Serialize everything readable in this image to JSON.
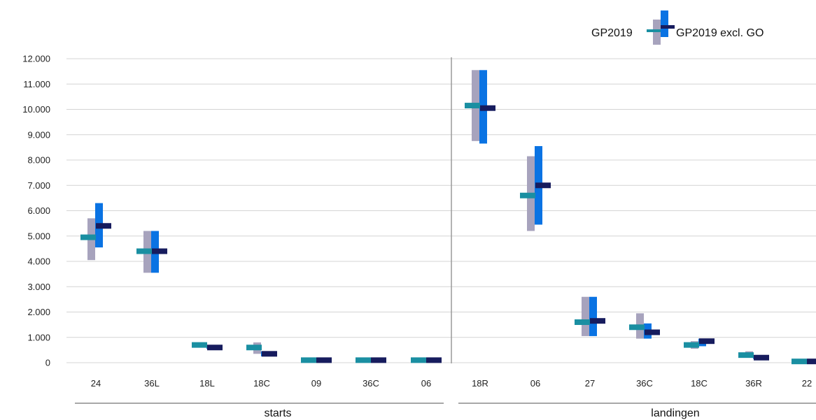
{
  "chart_data": {
    "type": "range-bar",
    "ylim": [
      0,
      12000
    ],
    "y_ticks": [
      {
        "value": 0,
        "label": "0"
      },
      {
        "value": 1000,
        "label": "1.000"
      },
      {
        "value": 2000,
        "label": "2.000"
      },
      {
        "value": 3000,
        "label": "3.000"
      },
      {
        "value": 4000,
        "label": "4.000"
      },
      {
        "value": 5000,
        "label": "5.000"
      },
      {
        "value": 6000,
        "label": "6.000"
      },
      {
        "value": 7000,
        "label": "7.000"
      },
      {
        "value": 8000,
        "label": "8.000"
      },
      {
        "value": 9000,
        "label": "9.000"
      },
      {
        "value": 10000,
        "label": "10.000"
      },
      {
        "value": 11000,
        "label": "11.000"
      },
      {
        "value": 12000,
        "label": "12.000"
      }
    ],
    "groups": [
      {
        "label": "starts",
        "categories": [
          "24",
          "36L",
          "18L",
          "18C",
          "09",
          "36C",
          "06"
        ]
      },
      {
        "label": "landingen",
        "categories": [
          "18R",
          "06",
          "27",
          "36C",
          "18C",
          "36R",
          "22"
        ]
      }
    ],
    "grid": true,
    "legend_position": "top-right",
    "series": [
      {
        "name": "GP2019",
        "range_color": "#a7a3bd",
        "marker_color": "#1a8fa2",
        "low": [
          4050,
          3550,
          650,
          350,
          50,
          50,
          50,
          8750,
          5200,
          1050,
          950,
          550,
          200,
          0
        ],
        "high": [
          5700,
          5200,
          800,
          800,
          150,
          150,
          150,
          11550,
          8150,
          2600,
          1950,
          850,
          450,
          100
        ],
        "mid": [
          4950,
          4400,
          700,
          600,
          100,
          100,
          100,
          10150,
          6600,
          1600,
          1400,
          700,
          300,
          50
        ]
      },
      {
        "name": "GP2019 excl. GO",
        "range_color": "#0a73e3",
        "marker_color": "#171c5e",
        "low": [
          4550,
          3550,
          550,
          250,
          50,
          50,
          50,
          8650,
          5450,
          1050,
          950,
          650,
          150,
          0
        ],
        "high": [
          6300,
          5200,
          650,
          450,
          150,
          150,
          150,
          11550,
          8550,
          2600,
          1550,
          950,
          300,
          100
        ],
        "mid": [
          5400,
          4400,
          600,
          350,
          100,
          100,
          100,
          10050,
          7000,
          1650,
          1200,
          850,
          200,
          50
        ]
      }
    ]
  }
}
